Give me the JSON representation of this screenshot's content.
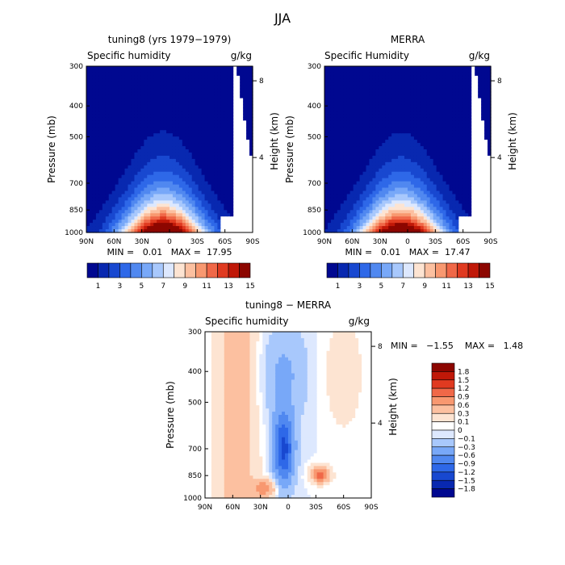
{
  "figure_title": "JJA",
  "chart_data": [
    {
      "type": "heatmap",
      "title": "tuning8 (yrs 1979−1979)",
      "subtitle_left": "Specific humidity",
      "subtitle_right": "g/kg",
      "ylabel": "Pressure (mb)",
      "ylabel_right": "Height (km)",
      "x_ticks": [
        "90N",
        "60N",
        "30N",
        "0",
        "30S",
        "60S",
        "90S"
      ],
      "y_ticks": [
        "300",
        "400",
        "500",
        "700",
        "850",
        "1000"
      ],
      "y_right_ticks": [
        "8",
        "4"
      ],
      "ylim": [
        1000,
        300
      ],
      "stats": "MIN =   0.01   MAX =  17.95",
      "min": 0.01,
      "max": 17.95,
      "peak_lat": 7,
      "peak_value": 17.95,
      "colorbar_labels": [
        "1",
        "3",
        "5",
        "7",
        "9",
        "11",
        "13",
        "15"
      ]
    },
    {
      "type": "heatmap",
      "title": "MERRA",
      "subtitle_left": "Specific Humidity",
      "subtitle_right": "g/kg",
      "ylabel": "Pressure (mb)",
      "ylabel_right": "Height (km)",
      "x_ticks": [
        "90N",
        "60N",
        "30N",
        "0",
        "30S",
        "60S",
        "90S"
      ],
      "y_ticks": [
        "300",
        "400",
        "500",
        "700",
        "850",
        "1000"
      ],
      "y_right_ticks": [
        "8",
        "4"
      ],
      "ylim": [
        1000,
        300
      ],
      "stats": "MIN =   0.01   MAX =  17.47",
      "min": 0.01,
      "max": 17.47,
      "peak_lat": 7,
      "peak_value": 17.47,
      "colorbar_labels": [
        "1",
        "3",
        "5",
        "7",
        "9",
        "11",
        "13",
        "15"
      ]
    },
    {
      "type": "heatmap",
      "title": "tuning8 − MERRA",
      "subtitle_left": "Specific humidity",
      "subtitle_right": "g/kg",
      "ylabel": "Pressure (mb)",
      "ylabel_right": "Height (km)",
      "x_ticks": [
        "90N",
        "60N",
        "30N",
        "0",
        "30S",
        "60S",
        "90S"
      ],
      "y_ticks": [
        "300",
        "400",
        "500",
        "700",
        "850",
        "1000"
      ],
      "y_right_ticks": [
        "8",
        "4"
      ],
      "ylim": [
        1000,
        300
      ],
      "stats": "MIN =   −1.55    MAX =   1.48",
      "min": -1.55,
      "max": 1.48,
      "colorbar_labels": [
        "1.8",
        "1.5",
        "1.2",
        "0.9",
        "0.6",
        "0.3",
        "0.1",
        "0",
        "−0.1",
        "−0.3",
        "−0.6",
        "−0.9",
        "−1.2",
        "−1.5",
        "−1.8"
      ]
    }
  ],
  "colors": {
    "seq": [
      "#000890",
      "#0828b0",
      "#1848d0",
      "#2e68e8",
      "#5088f0",
      "#78a8f8",
      "#a8c8fc",
      "#dde8fe",
      "#fde4d2",
      "#fcc0a0",
      "#f89870",
      "#f06848",
      "#e03a20",
      "#c01808",
      "#8c0600"
    ],
    "diff": [
      "#8c0600",
      "#c01808",
      "#e03a20",
      "#f06848",
      "#f89870",
      "#fcc0a0",
      "#fde4d2",
      "#ffffff",
      "#dde8fe",
      "#a8c8fc",
      "#78a8f8",
      "#5088f0",
      "#2e68e8",
      "#1848d0",
      "#0828b0",
      "#000890"
    ]
  }
}
